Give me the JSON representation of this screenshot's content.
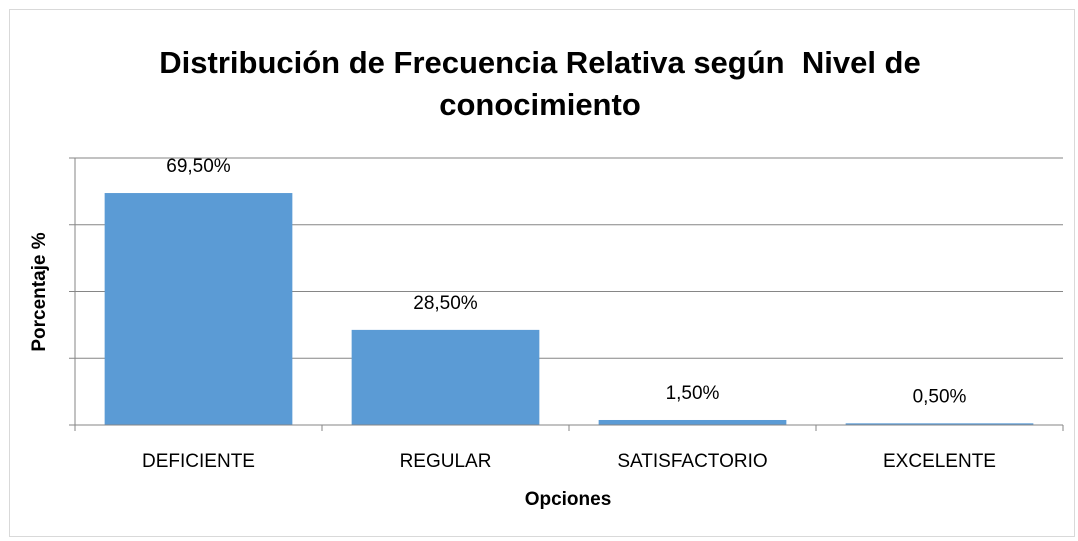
{
  "chart_data": {
    "type": "bar",
    "title": "Distribución de Frecuencia Relativa según  Nivel de conocimiento",
    "categories": [
      "DEFICIENTE",
      "REGULAR",
      "SATISFACTORIO",
      "EXCELENTE"
    ],
    "values": [
      69.5,
      28.5,
      1.5,
      0.5
    ],
    "value_labels": [
      "69,50%",
      "28,50%",
      "1,50%",
      "0,50%"
    ],
    "color": "#5b9bd5",
    "x_label": "Opciones",
    "y_label": "Porcentaje %",
    "ylim": [
      0,
      80
    ],
    "yticks": [
      0,
      20,
      40,
      60,
      80
    ],
    "grid": true
  }
}
